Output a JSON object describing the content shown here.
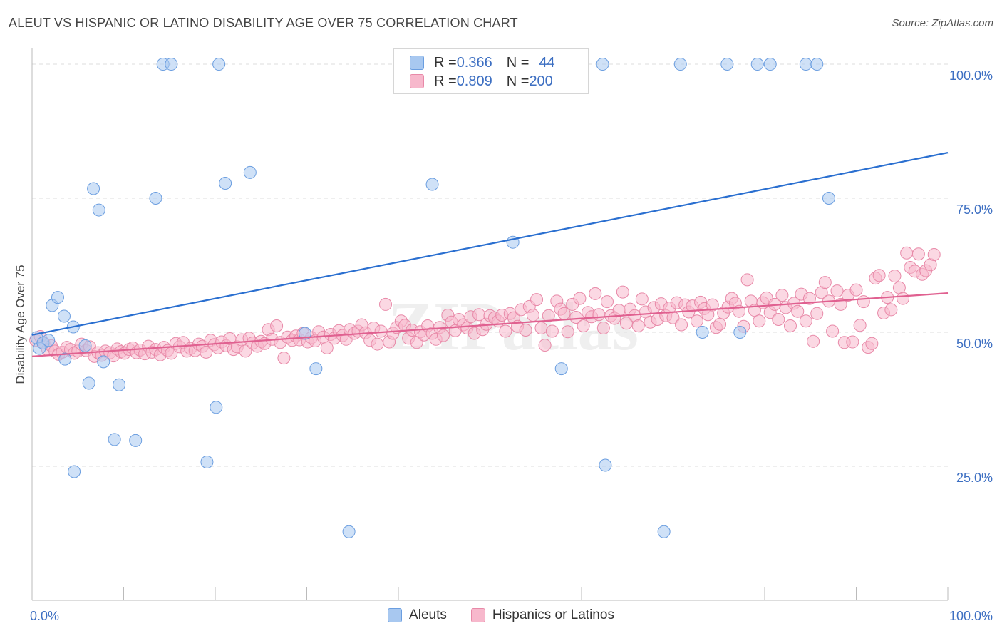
{
  "title": "ALEUT VS HISPANIC OR LATINO DISABILITY AGE OVER 75 CORRELATION CHART",
  "source": "Source: ZipAtlas.com",
  "watermark": "ZIPatlas",
  "legend": {
    "rows": [
      {
        "r_label": "R = ",
        "r_value": "0.366",
        "n_label": "N = ",
        "n_value": "44",
        "color": "#a8c8f0",
        "border": "#6b9ee0"
      },
      {
        "r_label": "R = ",
        "r_value": "0.809",
        "n_label": "N = ",
        "n_value": "200",
        "color": "#f7b8cc",
        "border": "#e889a8"
      }
    ]
  },
  "bottom_legend": [
    {
      "label": "Aleuts",
      "color": "#a8c8f0",
      "border": "#6b9ee0"
    },
    {
      "label": "Hispanics or Latinos",
      "color": "#f7b8cc",
      "border": "#e889a8"
    }
  ],
  "chart_data": {
    "type": "scatter",
    "ylabel": "Disability Age Over 75",
    "xlabel": "",
    "xlim": [
      0,
      100
    ],
    "ylim": [
      0,
      102
    ],
    "x_tick_labels": [
      {
        "value": 0,
        "label": "0.0%"
      },
      {
        "value": 100,
        "label": "100.0%"
      }
    ],
    "y_tick_labels": [
      {
        "value": 25,
        "label": "25.0%"
      },
      {
        "value": 50,
        "label": "50.0%"
      },
      {
        "value": 75,
        "label": "75.0%"
      },
      {
        "value": 100,
        "label": "100.0%"
      }
    ],
    "grid": true,
    "series": [
      {
        "name": "Aleuts",
        "color": "#a8c8f0",
        "stroke": "#6b9ee0",
        "line_color": "#2a6fd0",
        "trend": {
          "x": [
            0,
            100
          ],
          "y": [
            49.5,
            83.5
          ]
        },
        "points": [
          [
            0.5,
            49
          ],
          [
            0.8,
            47
          ],
          [
            1.2,
            48
          ],
          [
            1.8,
            48.5
          ],
          [
            2.2,
            55
          ],
          [
            2.8,
            56.5
          ],
          [
            3.5,
            53
          ],
          [
            3.6,
            45
          ],
          [
            4.5,
            51
          ],
          [
            4.6,
            24
          ],
          [
            5.8,
            47.5
          ],
          [
            6.2,
            40.5
          ],
          [
            6.7,
            76.8
          ],
          [
            7.3,
            72.8
          ],
          [
            7.8,
            44.5
          ],
          [
            9.0,
            30
          ],
          [
            9.5,
            40.2
          ],
          [
            11.3,
            29.8
          ],
          [
            13.5,
            75
          ],
          [
            14.3,
            100
          ],
          [
            15.2,
            100
          ],
          [
            19.1,
            25.8
          ],
          [
            20.1,
            36
          ],
          [
            20.4,
            100
          ],
          [
            21.1,
            77.8
          ],
          [
            23.8,
            79.8
          ],
          [
            29.8,
            49.8
          ],
          [
            31.0,
            43.2
          ],
          [
            34.6,
            12.8
          ],
          [
            43.7,
            77.6
          ],
          [
            47.3,
            100
          ],
          [
            52.5,
            66.8
          ],
          [
            57.8,
            43.2
          ],
          [
            62.3,
            100
          ],
          [
            62.6,
            25.2
          ],
          [
            69.0,
            12.8
          ],
          [
            70.8,
            100
          ],
          [
            73.2,
            50
          ],
          [
            75.9,
            100
          ],
          [
            77.3,
            50
          ],
          [
            79.2,
            100
          ],
          [
            80.6,
            100
          ],
          [
            84.5,
            100
          ],
          [
            85.7,
            100
          ],
          [
            87.0,
            75
          ]
        ]
      },
      {
        "name": "Hispanics or Latinos",
        "color": "#f7b8cc",
        "stroke": "#e889a8",
        "line_color": "#e06090",
        "trend": {
          "x": [
            0,
            100
          ],
          "y": [
            45.5,
            57.3
          ]
        },
        "points": [
          [
            0.4,
            48.5
          ],
          [
            0.9,
            49.2
          ],
          [
            1.3,
            48
          ],
          [
            1.7,
            46.8
          ],
          [
            2.1,
            47.5
          ],
          [
            2.5,
            46.5
          ],
          [
            2.9,
            45.9
          ],
          [
            3.3,
            46.3
          ],
          [
            3.8,
            47.2
          ],
          [
            4.2,
            46.8
          ],
          [
            4.6,
            46.1
          ],
          [
            5.0,
            46.5
          ],
          [
            5.4,
            47.8
          ],
          [
            5.9,
            46.6
          ],
          [
            6.3,
            47.3
          ],
          [
            6.8,
            45.5
          ],
          [
            7.2,
            46.2
          ],
          [
            7.6,
            45.7
          ],
          [
            8.0,
            46.5
          ],
          [
            8.5,
            46.2
          ],
          [
            8.9,
            45.6
          ],
          [
            9.3,
            46.9
          ],
          [
            9.7,
            46.4
          ],
          [
            10.1,
            46.1
          ],
          [
            10.6,
            46.8
          ],
          [
            11.0,
            47.1
          ],
          [
            11.4,
            46.2
          ],
          [
            11.8,
            46.7
          ],
          [
            12.3,
            46
          ],
          [
            12.7,
            47.4
          ],
          [
            13.1,
            46.3
          ],
          [
            13.5,
            46.8
          ],
          [
            14.0,
            45.8
          ],
          [
            14.4,
            47.2
          ],
          [
            14.8,
            46.6
          ],
          [
            15.2,
            46.1
          ],
          [
            15.7,
            47.9
          ],
          [
            16.1,
            47.3
          ],
          [
            16.5,
            48.1
          ],
          [
            16.9,
            46.5
          ],
          [
            17.3,
            47
          ],
          [
            17.8,
            46.6
          ],
          [
            18.2,
            47.8
          ],
          [
            18.6,
            47.4
          ],
          [
            19.0,
            46.3
          ],
          [
            19.5,
            48.5
          ],
          [
            19.9,
            47.7
          ],
          [
            20.3,
            47.1
          ],
          [
            20.7,
            48.2
          ],
          [
            21.2,
            47.5
          ],
          [
            21.6,
            48.8
          ],
          [
            22.0,
            46.8
          ],
          [
            22.4,
            47.3
          ],
          [
            22.9,
            48.6
          ],
          [
            23.3,
            46.5
          ],
          [
            23.7,
            48.9
          ],
          [
            24.1,
            48
          ],
          [
            24.6,
            47.4
          ],
          [
            25.0,
            48.3
          ],
          [
            25.4,
            47.9
          ],
          [
            25.8,
            50.5
          ],
          [
            26.2,
            48.7
          ],
          [
            26.7,
            51.2
          ],
          [
            27.1,
            48.1
          ],
          [
            27.5,
            45.2
          ],
          [
            27.9,
            49.1
          ],
          [
            28.4,
            48.5
          ],
          [
            28.8,
            49.3
          ],
          [
            29.2,
            48.6
          ],
          [
            29.6,
            49.8
          ],
          [
            30.1,
            48.2
          ],
          [
            30.5,
            49
          ],
          [
            30.9,
            48.4
          ],
          [
            31.3,
            50.1
          ],
          [
            31.8,
            49.1
          ],
          [
            32.2,
            47.1
          ],
          [
            32.6,
            49.6
          ],
          [
            33.0,
            48.9
          ],
          [
            33.5,
            50.3
          ],
          [
            33.9,
            49.4
          ],
          [
            34.3,
            48.7
          ],
          [
            34.7,
            50.5
          ],
          [
            35.2,
            49.8
          ],
          [
            35.6,
            50.2
          ],
          [
            36.0,
            51.4
          ],
          [
            36.4,
            49.9
          ],
          [
            36.9,
            48.5
          ],
          [
            37.3,
            50.8
          ],
          [
            37.7,
            47.8
          ],
          [
            38.1,
            50.2
          ],
          [
            38.6,
            55.2
          ],
          [
            39.0,
            48.2
          ],
          [
            39.4,
            49.8
          ],
          [
            39.8,
            50.9
          ],
          [
            40.3,
            52.1
          ],
          [
            40.7,
            51.3
          ],
          [
            41.1,
            48.9
          ],
          [
            41.5,
            50.4
          ],
          [
            42.0,
            48.1
          ],
          [
            42.4,
            50.1
          ],
          [
            42.8,
            49.5
          ],
          [
            43.2,
            51.2
          ],
          [
            43.7,
            49.8
          ],
          [
            44.1,
            48.7
          ],
          [
            44.5,
            50.9
          ],
          [
            44.9,
            49.4
          ],
          [
            45.4,
            53.2
          ],
          [
            45.8,
            51.9
          ],
          [
            46.2,
            50.3
          ],
          [
            46.6,
            52.4
          ],
          [
            47.1,
            51.4
          ],
          [
            47.5,
            50.8
          ],
          [
            47.9,
            52.9
          ],
          [
            48.3,
            49.8
          ],
          [
            48.8,
            53.3
          ],
          [
            49.2,
            50.5
          ],
          [
            49.6,
            51.5
          ],
          [
            50.0,
            53.1
          ],
          [
            50.5,
            52.7
          ],
          [
            50.9,
            52.1
          ],
          [
            51.3,
            53.2
          ],
          [
            51.7,
            50.2
          ],
          [
            52.2,
            53.5
          ],
          [
            52.6,
            52.7
          ],
          [
            53.0,
            51.1
          ],
          [
            53.4,
            54.2
          ],
          [
            53.9,
            50.4
          ],
          [
            54.3,
            54.8
          ],
          [
            54.7,
            53.2
          ],
          [
            55.1,
            56.1
          ],
          [
            55.6,
            50.8
          ],
          [
            56.0,
            47.6
          ],
          [
            56.4,
            53.1
          ],
          [
            56.8,
            50.2
          ],
          [
            57.3,
            55.8
          ],
          [
            57.7,
            54.3
          ],
          [
            58.1,
            53.5
          ],
          [
            58.5,
            50.1
          ],
          [
            59.0,
            55.2
          ],
          [
            59.4,
            52.8
          ],
          [
            59.8,
            56.3
          ],
          [
            60.2,
            51.2
          ],
          [
            60.7,
            53.7
          ],
          [
            61.1,
            52.9
          ],
          [
            61.5,
            57.2
          ],
          [
            61.9,
            53.3
          ],
          [
            62.4,
            50.8
          ],
          [
            62.8,
            55.7
          ],
          [
            63.2,
            53.1
          ],
          [
            63.6,
            52.6
          ],
          [
            64.1,
            54.1
          ],
          [
            64.5,
            57.5
          ],
          [
            64.9,
            51.7
          ],
          [
            65.3,
            54.3
          ],
          [
            65.8,
            53.1
          ],
          [
            66.2,
            51.2
          ],
          [
            66.6,
            56.2
          ],
          [
            67.0,
            53.8
          ],
          [
            67.5,
            51.9
          ],
          [
            67.9,
            54.6
          ],
          [
            68.3,
            52.4
          ],
          [
            68.7,
            55.3
          ],
          [
            69.2,
            53.1
          ],
          [
            69.6,
            54.5
          ],
          [
            70.0,
            52.7
          ],
          [
            70.4,
            55.5
          ],
          [
            70.9,
            51.4
          ],
          [
            71.3,
            55.1
          ],
          [
            71.7,
            53.8
          ],
          [
            72.1,
            54.9
          ],
          [
            72.6,
            52.1
          ],
          [
            73.0,
            55.6
          ],
          [
            73.4,
            54.4
          ],
          [
            73.8,
            53.3
          ],
          [
            74.3,
            55.1
          ],
          [
            74.7,
            50.9
          ],
          [
            75.1,
            51.5
          ],
          [
            75.5,
            53.6
          ],
          [
            76.0,
            54.7
          ],
          [
            76.4,
            56.3
          ],
          [
            76.8,
            55.4
          ],
          [
            77.2,
            53.9
          ],
          [
            77.7,
            51.1
          ],
          [
            78.1,
            59.8
          ],
          [
            78.5,
            55.8
          ],
          [
            78.9,
            54.1
          ],
          [
            79.4,
            52.1
          ],
          [
            79.8,
            55.5
          ],
          [
            80.2,
            56.4
          ],
          [
            80.6,
            53.7
          ],
          [
            81.1,
            55.2
          ],
          [
            81.5,
            52.4
          ],
          [
            81.9,
            56.9
          ],
          [
            82.3,
            54.6
          ],
          [
            82.8,
            51.2
          ],
          [
            83.2,
            55.4
          ],
          [
            83.6,
            53.9
          ],
          [
            84.0,
            57.1
          ],
          [
            84.5,
            52.1
          ],
          [
            84.9,
            56.3
          ],
          [
            85.3,
            48.3
          ],
          [
            85.7,
            53.5
          ],
          [
            86.2,
            57.4
          ],
          [
            86.6,
            59.3
          ],
          [
            87.0,
            55.8
          ],
          [
            87.4,
            50.2
          ],
          [
            87.9,
            57.7
          ],
          [
            88.3,
            55.2
          ],
          [
            88.7,
            48.1
          ],
          [
            89.1,
            56.9
          ],
          [
            89.6,
            48.2
          ],
          [
            90.0,
            57.9
          ],
          [
            90.4,
            51.3
          ],
          [
            90.8,
            55.7
          ],
          [
            91.3,
            47.2
          ],
          [
            91.7,
            47.9
          ],
          [
            92.1,
            60.1
          ],
          [
            92.5,
            60.6
          ],
          [
            93.0,
            53.6
          ],
          [
            93.4,
            56.5
          ],
          [
            93.8,
            54.2
          ],
          [
            94.2,
            60.5
          ],
          [
            94.7,
            58.3
          ],
          [
            95.1,
            56.3
          ],
          [
            95.5,
            64.8
          ],
          [
            95.9,
            62.1
          ],
          [
            96.4,
            61.4
          ],
          [
            96.8,
            64.6
          ],
          [
            97.2,
            60.8
          ],
          [
            97.6,
            61.5
          ],
          [
            98.1,
            62.6
          ],
          [
            98.5,
            64.5
          ]
        ]
      }
    ]
  }
}
